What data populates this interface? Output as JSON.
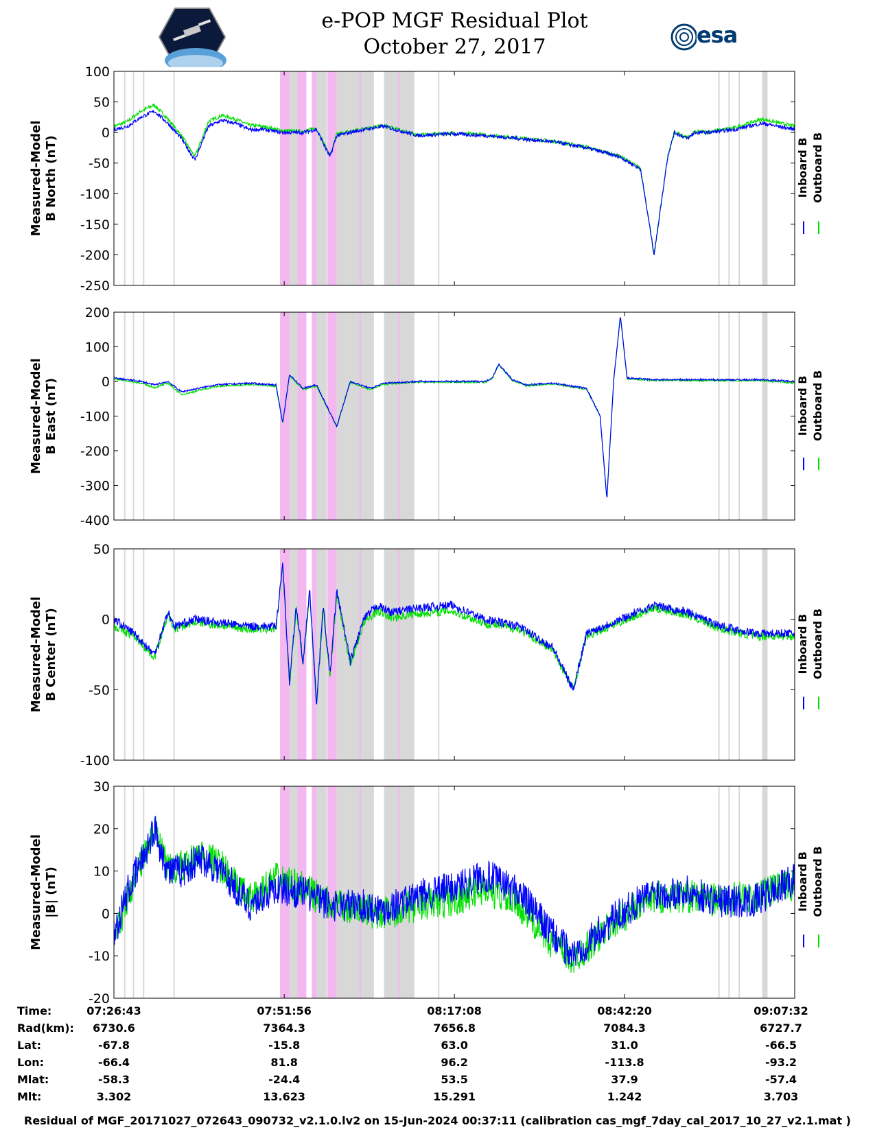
{
  "title": "e-POP MGF Residual Plot",
  "date": "October 27, 2017",
  "logos": {
    "left": "cassiope-mission-logo",
    "right": "esa-logo",
    "right_text": "esa"
  },
  "colors": {
    "inboard": "#0000ff",
    "outboard": "#00e000",
    "shade_pink": "#f4b8f0",
    "shade_gray": "#d8d8d8"
  },
  "legend": {
    "inboard": "Inboard B",
    "outboard": "Outboard B"
  },
  "time_ticks": [
    "07:26:43",
    "07:51:56",
    "08:17:08",
    "08:42:20",
    "09:07:32"
  ],
  "info_rows": [
    {
      "label": "Time:",
      "values": [
        "07:26:43",
        "07:51:56",
        "08:17:08",
        "08:42:20",
        "09:07:32"
      ]
    },
    {
      "label": "Rad(km):",
      "values": [
        "6730.6",
        "7364.3",
        "7656.8",
        "7084.3",
        "6727.7"
      ]
    },
    {
      "label": "Lat:",
      "values": [
        "-67.8",
        "-15.8",
        "63.0",
        "31.0",
        "-66.5"
      ]
    },
    {
      "label": "Lon:",
      "values": [
        "-66.4",
        "81.8",
        "96.2",
        "-113.8",
        "-93.2"
      ]
    },
    {
      "label": "Mlat:",
      "values": [
        "-58.3",
        "-24.4",
        "53.5",
        "37.9",
        "-57.4"
      ]
    },
    {
      "label": "Mlt:",
      "values": [
        "3.302",
        "13.623",
        "15.291",
        "1.242",
        "3.703"
      ]
    }
  ],
  "footer": "Residual of MGF_20171027_072643_090732_v2.1.0.lv2 on 15-Jun-2024 00:37:11 (calibration cas_mgf_7day_cal_2017_10_27_v2.1.mat )",
  "chart_data": [
    {
      "type": "line",
      "ylabel": [
        "Measured-Model",
        "B North (nT)"
      ],
      "ylim": [
        -250,
        100
      ],
      "yticks": [
        100,
        50,
        0,
        -50,
        -100,
        -150,
        -200,
        -250
      ],
      "x_unit": "minutes after 07:26:43",
      "xlim": [
        0,
        100.82
      ],
      "series": [
        {
          "name": "Inboard B",
          "x": [
            0,
            2,
            4,
            6,
            8,
            10,
            12,
            14,
            16,
            18,
            20,
            22,
            25,
            28,
            30,
            32,
            33,
            35,
            37,
            40,
            45,
            50,
            55,
            60,
            65,
            70,
            75,
            78,
            80,
            82,
            83,
            84,
            85,
            86,
            88,
            92,
            96,
            100.82
          ],
          "y": [
            5,
            10,
            25,
            35,
            15,
            -10,
            -45,
            10,
            20,
            15,
            5,
            5,
            0,
            0,
            5,
            -40,
            -5,
            0,
            5,
            10,
            -5,
            -2,
            -5,
            -10,
            -15,
            -25,
            -40,
            -60,
            -200,
            -40,
            0,
            -5,
            -10,
            0,
            0,
            5,
            15,
            5
          ]
        },
        {
          "name": "Outboard B",
          "x": [
            0,
            2,
            4,
            6,
            8,
            10,
            12,
            14,
            16,
            18,
            20,
            22,
            25,
            28,
            30,
            32,
            33,
            35,
            37,
            40,
            45,
            50,
            55,
            60,
            65,
            70,
            75,
            78,
            80,
            82,
            83,
            84,
            85,
            86,
            88,
            92,
            96,
            100.82
          ],
          "y": [
            10,
            18,
            35,
            45,
            22,
            -5,
            -40,
            18,
            28,
            22,
            12,
            10,
            3,
            2,
            7,
            -38,
            -3,
            2,
            7,
            11,
            -4,
            -1,
            -4,
            -9,
            -14,
            -24,
            -39,
            -59,
            -199,
            -39,
            1,
            -4,
            -9,
            1,
            1,
            8,
            22,
            10
          ]
        }
      ]
    },
    {
      "type": "line",
      "ylabel": [
        "Measured-Model",
        "B East (nT)"
      ],
      "ylim": [
        -400,
        200
      ],
      "yticks": [
        200,
        100,
        0,
        -100,
        -200,
        -300,
        -400
      ],
      "x_unit": "minutes after 07:26:43",
      "xlim": [
        0,
        100.82
      ],
      "series": [
        {
          "name": "Inboard B",
          "x": [
            0,
            4,
            6,
            8,
            10,
            15,
            20,
            24,
            25,
            26,
            28,
            30,
            33,
            35,
            38,
            40,
            45,
            50,
            55,
            56,
            57,
            59,
            61,
            65,
            70,
            72,
            73,
            74,
            75,
            76,
            80,
            85,
            90,
            96,
            100.82
          ],
          "y": [
            10,
            0,
            -10,
            0,
            -30,
            -10,
            -5,
            -10,
            -120,
            20,
            -20,
            -10,
            -130,
            0,
            -20,
            -5,
            0,
            0,
            0,
            10,
            50,
            5,
            -10,
            -5,
            -20,
            -100,
            -340,
            0,
            190,
            10,
            5,
            5,
            5,
            5,
            0
          ]
        },
        {
          "name": "Outboard B",
          "x": [
            0,
            4,
            6,
            8,
            10,
            15,
            20,
            24,
            25,
            26,
            28,
            30,
            33,
            35,
            38,
            40,
            45,
            50,
            55,
            56,
            57,
            59,
            61,
            65,
            70,
            72,
            73,
            74,
            75,
            76,
            80,
            85,
            90,
            96,
            100.82
          ],
          "y": [
            8,
            -5,
            -18,
            -5,
            -38,
            -15,
            -8,
            -14,
            -120,
            17,
            -23,
            -13,
            -130,
            -3,
            -23,
            -8,
            -2,
            -2,
            -2,
            8,
            48,
            3,
            -12,
            -7,
            -22,
            -100,
            -340,
            -2,
            188,
            8,
            3,
            3,
            3,
            3,
            -5
          ]
        }
      ]
    },
    {
      "type": "line",
      "ylabel": [
        "Measured-Model",
        "B Center (nT)"
      ],
      "ylim": [
        -100,
        50
      ],
      "yticks": [
        50,
        0,
        -50,
        -100
      ],
      "x_unit": "minutes after 07:26:43",
      "xlim": [
        0,
        100.82
      ],
      "series": [
        {
          "name": "Inboard B",
          "x": [
            0,
            3,
            6,
            8,
            9,
            12,
            20,
            24,
            25,
            26,
            27,
            28,
            29,
            30,
            31,
            32,
            33,
            35,
            37,
            39,
            41,
            45,
            50,
            55,
            60,
            65,
            68,
            70,
            75,
            80,
            85,
            90,
            95,
            100.82
          ],
          "y": [
            0,
            -10,
            -25,
            5,
            -5,
            0,
            -5,
            -5,
            40,
            -45,
            10,
            -30,
            20,
            -60,
            10,
            -40,
            20,
            -30,
            0,
            10,
            5,
            8,
            10,
            0,
            -5,
            -20,
            -50,
            -10,
            0,
            10,
            5,
            -5,
            -10,
            -10
          ]
        },
        {
          "name": "Outboard B",
          "x": [
            0,
            3,
            6,
            8,
            9,
            12,
            20,
            24,
            25,
            26,
            27,
            28,
            29,
            30,
            31,
            32,
            33,
            35,
            37,
            39,
            41,
            45,
            50,
            55,
            60,
            65,
            68,
            70,
            75,
            80,
            85,
            90,
            95,
            100.82
          ],
          "y": [
            -5,
            -12,
            -27,
            3,
            -7,
            -2,
            -7,
            -7,
            38,
            -47,
            8,
            -32,
            18,
            -62,
            8,
            -42,
            18,
            -32,
            -3,
            6,
            1,
            4,
            6,
            -3,
            -7,
            -22,
            -50,
            -12,
            -2,
            8,
            3,
            -7,
            -12,
            -12
          ]
        }
      ]
    },
    {
      "type": "line",
      "ylabel": [
        "Measured-Model",
        "|B| (nT)"
      ],
      "ylim": [
        -20,
        30
      ],
      "yticks": [
        30,
        20,
        10,
        0,
        -10,
        -20
      ],
      "x_unit": "minutes after 07:26:43",
      "xlim": [
        0,
        100.82
      ],
      "series": [
        {
          "name": "Inboard B",
          "x": [
            0,
            2,
            4,
            6,
            8,
            10,
            13,
            16,
            20,
            24,
            28,
            32,
            36,
            40,
            45,
            50,
            55,
            60,
            65,
            68,
            70,
            75,
            80,
            85,
            90,
            95,
            100.82
          ],
          "y": [
            -5,
            5,
            12,
            20,
            10,
            10,
            13,
            10,
            2,
            6,
            5,
            2,
            2,
            1,
            4,
            6,
            9,
            5,
            -5,
            -10,
            -7,
            0,
            5,
            5,
            3,
            3,
            8
          ]
        },
        {
          "name": "Outboard B",
          "x": [
            0,
            2,
            4,
            6,
            8,
            10,
            13,
            16,
            20,
            24,
            28,
            32,
            36,
            40,
            45,
            50,
            55,
            60,
            65,
            68,
            70,
            75,
            80,
            85,
            90,
            95,
            100.82
          ],
          "y": [
            -7,
            4,
            12,
            20,
            10,
            11,
            14,
            11,
            3,
            8,
            6,
            2,
            1,
            0,
            2,
            3,
            6,
            2,
            -7,
            -11,
            -8,
            -1,
            4,
            4,
            3,
            4,
            7
          ]
        }
      ]
    }
  ]
}
